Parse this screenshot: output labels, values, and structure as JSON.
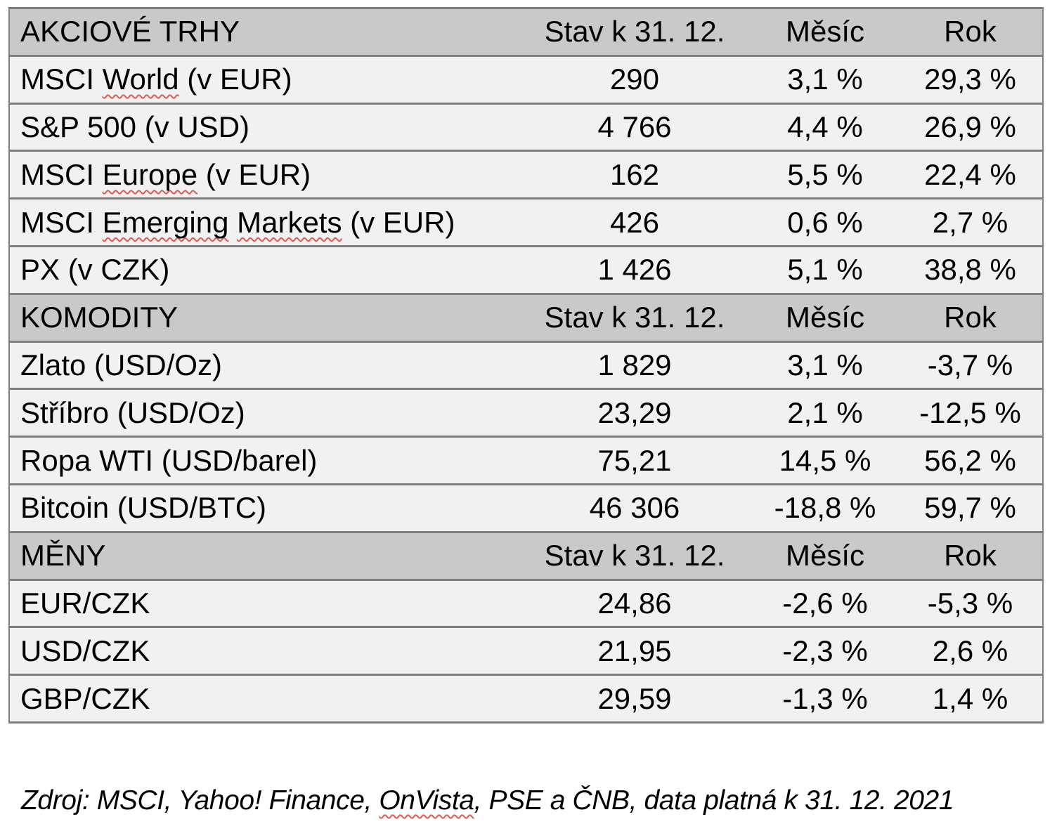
{
  "colors": {
    "page_bg": "#ffffff",
    "section_header_bg": "#c9c9c9",
    "row_bg": "#f1f1f1",
    "border": "#7f7f7f",
    "spellcheck_squiggle": "#e05a50",
    "text": "#000000"
  },
  "table": {
    "sections": [
      {
        "title": "AKCIOVÉ TRHY",
        "columns": [
          "Stav k 31. 12.",
          "Měsíc",
          "Rok"
        ],
        "rows": [
          {
            "label": [
              {
                "t": "MSCI "
              },
              {
                "t": "World",
                "misspelled": true
              },
              {
                "t": " (v EUR)"
              }
            ],
            "value": "290",
            "month": "3,1 %",
            "year": "29,3 %"
          },
          {
            "label": [
              {
                "t": "S&P 500 (v USD)"
              }
            ],
            "value": "4 766",
            "month": "4,4 %",
            "year": "26,9 %"
          },
          {
            "label": [
              {
                "t": "MSCI "
              },
              {
                "t": "Europe",
                "misspelled": true
              },
              {
                "t": " (v EUR)"
              }
            ],
            "value": "162",
            "month": "5,5 %",
            "year": "22,4 %"
          },
          {
            "label": [
              {
                "t": "MSCI "
              },
              {
                "t": "Emerging",
                "misspelled": true
              },
              {
                "t": " "
              },
              {
                "t": "Markets",
                "misspelled": true
              },
              {
                "t": " (v EUR)"
              }
            ],
            "value": "426",
            "month": "0,6 %",
            "year": "2,7 %"
          },
          {
            "label": [
              {
                "t": "PX (v CZK)"
              }
            ],
            "value": "1 426",
            "month": "5,1 %",
            "year": "38,8 %"
          }
        ]
      },
      {
        "title": "KOMODITY",
        "columns": [
          "Stav k 31. 12.",
          "Měsíc",
          "Rok"
        ],
        "rows": [
          {
            "label": [
              {
                "t": "Zlato (USD/Oz)"
              }
            ],
            "value": "1 829",
            "month": "3,1 %",
            "year": "-3,7 %"
          },
          {
            "label": [
              {
                "t": "Stříbro (USD/Oz)"
              }
            ],
            "value": "23,29",
            "month": "2,1 %",
            "year": "-12,5 %"
          },
          {
            "label": [
              {
                "t": "Ropa WTI (USD/barel)"
              }
            ],
            "value": "75,21",
            "month": "14,5 %",
            "year": "56,2 %"
          },
          {
            "label": [
              {
                "t": "Bitcoin (USD/BTC)"
              }
            ],
            "value": "46 306",
            "month": "-18,8 %",
            "year": "59,7 %"
          }
        ]
      },
      {
        "title": "MĚNY",
        "columns": [
          "Stav k 31. 12.",
          "Měsíc",
          "Rok"
        ],
        "rows": [
          {
            "label": [
              {
                "t": "EUR/CZK"
              }
            ],
            "value": "24,86",
            "month": "-2,6 %",
            "year": "-5,3 %"
          },
          {
            "label": [
              {
                "t": "USD/CZK"
              }
            ],
            "value": "21,95",
            "month": "-2,3 %",
            "year": "2,6 %"
          },
          {
            "label": [
              {
                "t": "GBP/CZK"
              }
            ],
            "value": "29,59",
            "month": "-1,3 %",
            "year": "1,4 %"
          }
        ]
      }
    ]
  },
  "footer": {
    "segments": [
      {
        "t": "Zdroj: MSCI, Yahoo! Finance, "
      },
      {
        "t": "OnVista",
        "misspelled": true
      },
      {
        "t": ", PSE a ČNB, data platná k 31. 12. 2021"
      }
    ]
  }
}
